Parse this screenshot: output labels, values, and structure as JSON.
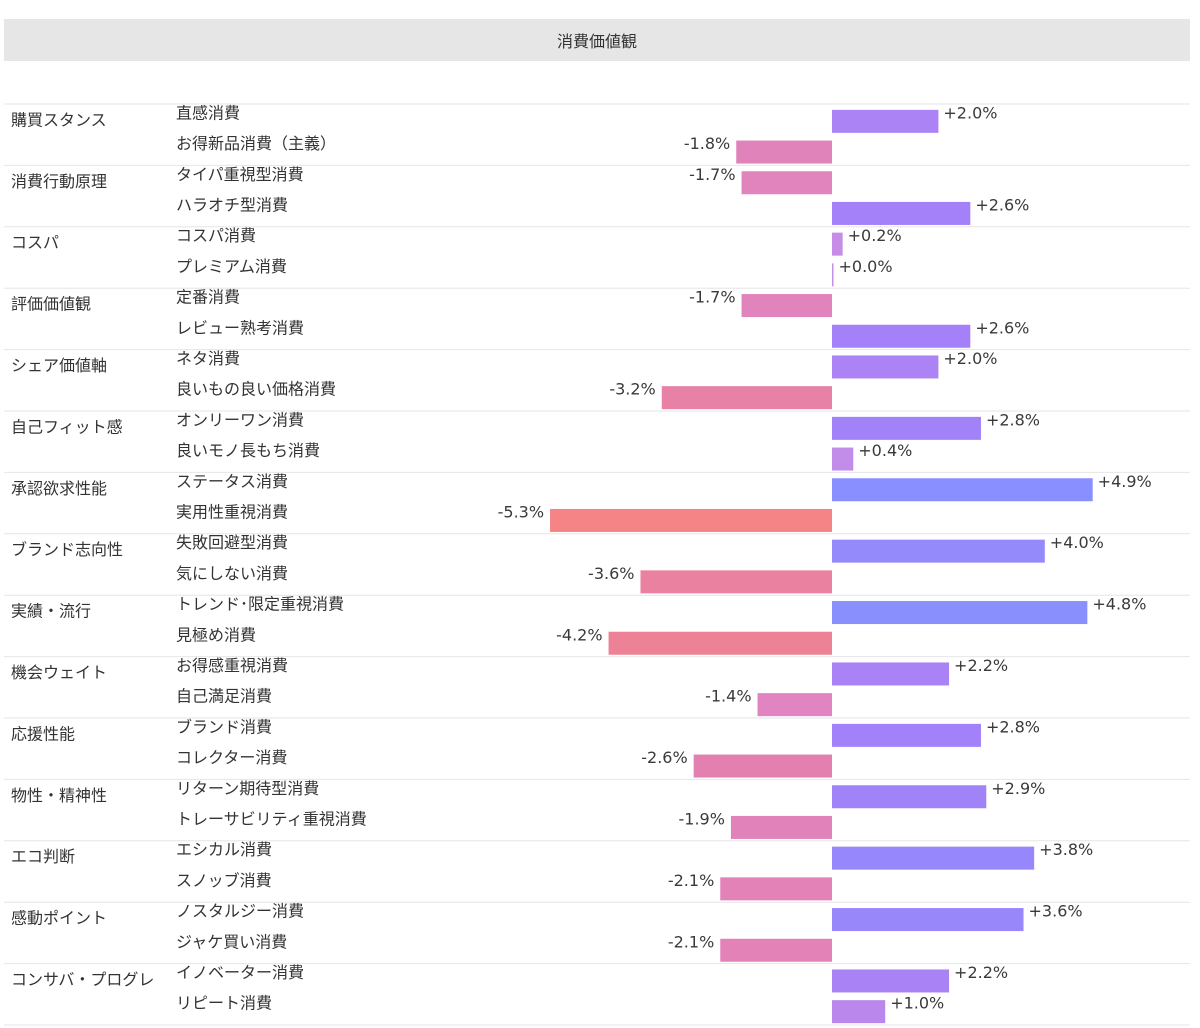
{
  "title": "消費価値観",
  "chart_data": {
    "type": "bar",
    "title": "消費価値観",
    "orientation": "horizontal-diverging",
    "unit": "%",
    "groups": [
      {
        "name": "購買スタンス",
        "items": [
          {
            "label": "直感消費",
            "value": 2.0
          },
          {
            "label": "お得新品消費（主義）",
            "value": -1.8
          }
        ]
      },
      {
        "name": "消費行動原理",
        "items": [
          {
            "label": "タイパ重視型消費",
            "value": -1.7
          },
          {
            "label": "ハラオチ型消費",
            "value": 2.6
          }
        ]
      },
      {
        "name": "コスパ",
        "items": [
          {
            "label": "コスパ消費",
            "value": 0.2
          },
          {
            "label": "プレミアム消費",
            "value": 0.0
          }
        ]
      },
      {
        "name": "評価価値観",
        "items": [
          {
            "label": "定番消費",
            "value": -1.7
          },
          {
            "label": "レビュー熟考消費",
            "value": 2.6
          }
        ]
      },
      {
        "name": "シェア価値軸",
        "items": [
          {
            "label": "ネタ消費",
            "value": 2.0
          },
          {
            "label": "良いもの良い価格消費",
            "value": -3.2
          }
        ]
      },
      {
        "name": "自己フィット感",
        "items": [
          {
            "label": "オンリーワン消費",
            "value": 2.8
          },
          {
            "label": "良いモノ長もち消費",
            "value": 0.4
          }
        ]
      },
      {
        "name": "承認欲求性能",
        "items": [
          {
            "label": "ステータス消費",
            "value": 4.9
          },
          {
            "label": "実用性重視消費",
            "value": -5.3
          }
        ]
      },
      {
        "name": "ブランド志向性",
        "items": [
          {
            "label": "失敗回避型消費",
            "value": 4.0
          },
          {
            "label": "気にしない消費",
            "value": -3.6
          }
        ]
      },
      {
        "name": "実績・流行",
        "items": [
          {
            "label": "トレンド･限定重視消費",
            "value": 4.8
          },
          {
            "label": "見極め消費",
            "value": -4.2
          }
        ]
      },
      {
        "name": "機会ウェイト",
        "items": [
          {
            "label": "お得感重視消費",
            "value": 2.2
          },
          {
            "label": "自己満足消費",
            "value": -1.4
          }
        ]
      },
      {
        "name": "応援性能",
        "items": [
          {
            "label": "ブランド消費",
            "value": 2.8
          },
          {
            "label": "コレクター消費",
            "value": -2.6
          }
        ]
      },
      {
        "name": "物性・精神性",
        "items": [
          {
            "label": "リターン期待型消費",
            "value": 2.9
          },
          {
            "label": "トレーサビリティ重視消費",
            "value": -1.9
          }
        ]
      },
      {
        "name": "エコ判断",
        "items": [
          {
            "label": "エシカル消費",
            "value": 3.8
          },
          {
            "label": "スノッブ消費",
            "value": -2.1
          }
        ]
      },
      {
        "name": "感動ポイント",
        "items": [
          {
            "label": "ノスタルジー消費",
            "value": 3.6
          },
          {
            "label": "ジャケ買い消費",
            "value": -2.1
          }
        ]
      },
      {
        "name": "コンサバ・プログレ",
        "items": [
          {
            "label": "イノベーター消費",
            "value": 2.2
          },
          {
            "label": "リピート消費",
            "value": 1.0
          }
        ]
      }
    ],
    "value_range": [
      -5.3,
      4.9
    ],
    "colors": {
      "positive_low": "#c88ee6",
      "positive_mid": "#a580f8",
      "positive_high": "#8890ff",
      "negative_low": "#dc88d8",
      "negative_mid": "#e480ae",
      "negative_high": "#f48486",
      "separator": "#e6e6e6",
      "header_bg": "#e6e6e6"
    }
  }
}
